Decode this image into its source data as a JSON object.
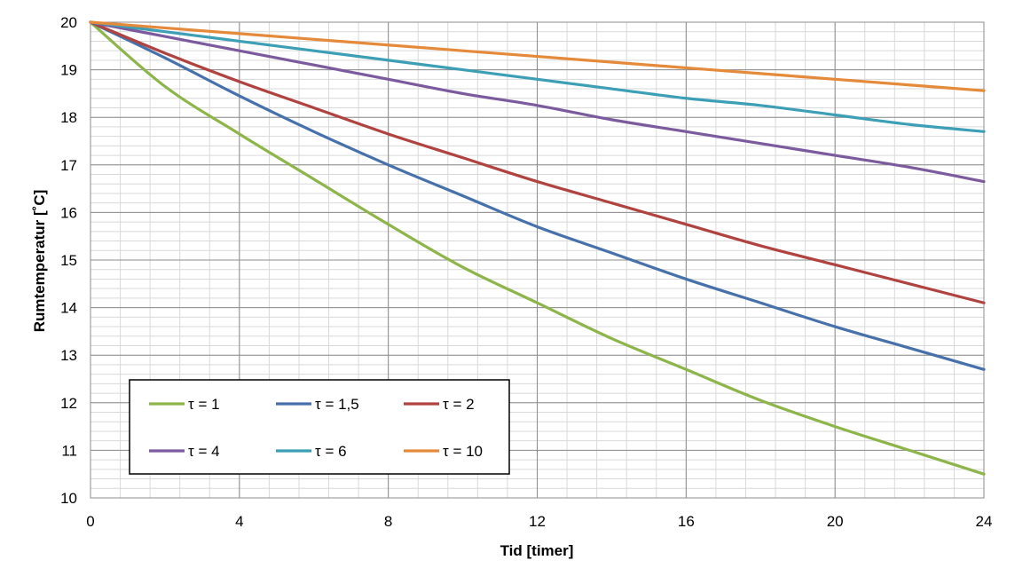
{
  "chart_data": {
    "type": "line",
    "xlabel": "Tid [timer]",
    "ylabel": "Rumtemperatur [˚C]",
    "xlim": [
      0,
      24
    ],
    "ylim": [
      10,
      20
    ],
    "x_ticks": [
      0,
      4,
      8,
      12,
      16,
      20,
      24
    ],
    "y_ticks": [
      10,
      11,
      12,
      13,
      14,
      15,
      16,
      17,
      18,
      19,
      20
    ],
    "grid": true,
    "legend": "bottom-left, 3 columns",
    "x": [
      0,
      2,
      4,
      6,
      8,
      10,
      12,
      14,
      16,
      18,
      20,
      22,
      24
    ],
    "series": [
      {
        "name": "τ = 1",
        "color": "#8db54a",
        "values": [
          20,
          18.65,
          17.65,
          16.7,
          15.75,
          14.85,
          14.1,
          13.35,
          12.7,
          12.05,
          11.5,
          11.0,
          10.5
        ]
      },
      {
        "name": "τ = 1,5",
        "color": "#4671ab",
        "values": [
          20,
          19.25,
          18.45,
          17.7,
          17.0,
          16.35,
          15.7,
          15.15,
          14.6,
          14.1,
          13.6,
          13.15,
          12.7
        ]
      },
      {
        "name": "τ = 2",
        "color": "#b04240",
        "values": [
          20,
          19.35,
          18.75,
          18.2,
          17.65,
          17.15,
          16.65,
          16.2,
          15.75,
          15.3,
          14.9,
          14.5,
          14.1
        ]
      },
      {
        "name": "τ = 4",
        "color": "#7b5b9e",
        "values": [
          20,
          19.7,
          19.4,
          19.1,
          18.8,
          18.5,
          18.25,
          17.95,
          17.7,
          17.45,
          17.2,
          16.95,
          16.65
        ]
      },
      {
        "name": "τ = 6",
        "color": "#3d9fb6",
        "values": [
          20,
          19.8,
          19.6,
          19.4,
          19.2,
          19.0,
          18.8,
          18.6,
          18.4,
          18.25,
          18.05,
          17.85,
          17.7
        ]
      },
      {
        "name": "τ = 10",
        "color": "#e48a3a",
        "values": [
          20,
          19.88,
          19.76,
          19.64,
          19.52,
          19.4,
          19.28,
          19.16,
          19.04,
          18.92,
          18.8,
          18.68,
          18.56
        ]
      }
    ]
  }
}
